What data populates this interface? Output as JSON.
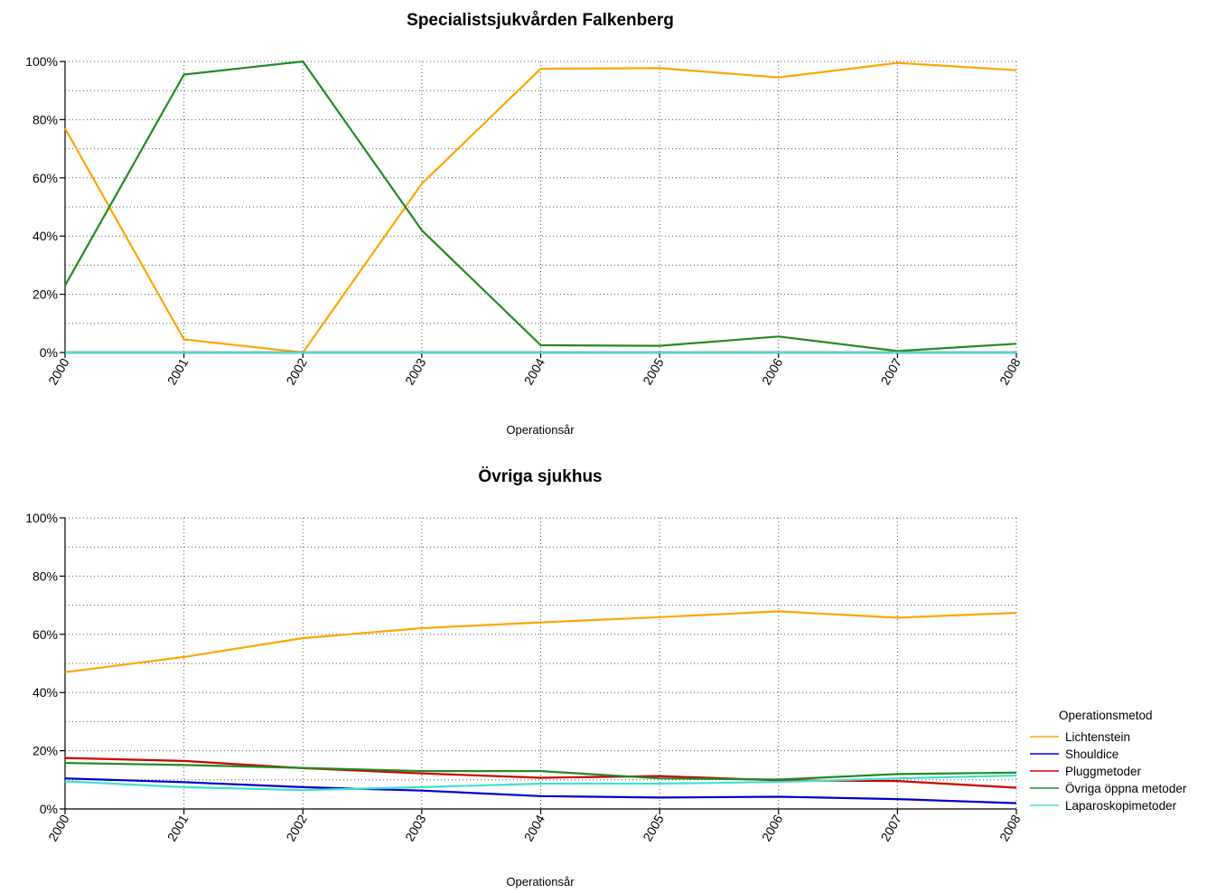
{
  "chart_data": [
    {
      "type": "line",
      "title": "Specialistsjukvården Falkenberg",
      "xlabel": "Operationsår",
      "ylabel": "",
      "ylim": [
        0,
        100
      ],
      "y_ticks": [
        "0%",
        "20%",
        "40%",
        "60%",
        "80%",
        "100%"
      ],
      "grid": true,
      "x": [
        "2000",
        "2001",
        "2002",
        "2003",
        "2004",
        "2005",
        "2006",
        "2007",
        "2008"
      ],
      "series": [
        {
          "name": "Lichtenstein",
          "color": "#FFA500",
          "values": [
            77,
            4.5,
            0,
            58,
            97.5,
            97.7,
            94.5,
            99.5,
            97
          ]
        },
        {
          "name": "Shouldice",
          "color": "#0000CD",
          "values": [
            0,
            0,
            0,
            0,
            0,
            0,
            0,
            0,
            0
          ]
        },
        {
          "name": "Pluggmetoder",
          "color": "#CD0000",
          "values": [
            0,
            0,
            0,
            0,
            0,
            0,
            0,
            0,
            0
          ]
        },
        {
          "name": "Övriga öppna metoder",
          "color": "#228B22",
          "values": [
            23,
            95.5,
            100,
            42,
            2.5,
            2.3,
            5.5,
            0.5,
            3
          ]
        },
        {
          "name": "Laparoskopimetoder",
          "color": "#40E0D0",
          "values": [
            0,
            0,
            0,
            0,
            0,
            0,
            0,
            0,
            0
          ]
        }
      ]
    },
    {
      "type": "line",
      "title": "Övriga sjukhus",
      "xlabel": "Operationsår",
      "ylabel": "",
      "ylim": [
        0,
        100
      ],
      "y_ticks": [
        "0%",
        "20%",
        "40%",
        "60%",
        "80%",
        "100%"
      ],
      "grid": true,
      "x": [
        "2000",
        "2001",
        "2002",
        "2003",
        "2004",
        "2005",
        "2006",
        "2007",
        "2008"
      ],
      "series": [
        {
          "name": "Lichtenstein",
          "color": "#FFA500",
          "values": [
            47,
            52.2,
            58.7,
            62.1,
            64.1,
            65.9,
            67.9,
            65.7,
            67.4
          ]
        },
        {
          "name": "Shouldice",
          "color": "#0000CD",
          "values": [
            10.5,
            9.2,
            7.5,
            6.3,
            4.4,
            3.9,
            4.2,
            3.4,
            2
          ]
        },
        {
          "name": "Pluggmetoder",
          "color": "#CD0000",
          "values": [
            17.5,
            16.5,
            14,
            12.2,
            10.7,
            11.3,
            9.8,
            9.6,
            7.3
          ]
        },
        {
          "name": "Övriga öppna metoder",
          "color": "#228B22",
          "values": [
            15.8,
            15.1,
            14.1,
            13,
            13,
            10.5,
            10.1,
            12,
            12.5
          ]
        },
        {
          "name": "Laparoskopimetoder",
          "color": "#40E0D0",
          "values": [
            9.5,
            7.5,
            6.5,
            7.5,
            8.7,
            8.7,
            9.3,
            10.5,
            11.5
          ]
        }
      ]
    }
  ],
  "legend": {
    "title": "Operationsmetod",
    "items": [
      {
        "label": "Lichtenstein",
        "color": "#FFA500"
      },
      {
        "label": "Shouldice",
        "color": "#0000CD"
      },
      {
        "label": "Pluggmetoder",
        "color": "#CD0000"
      },
      {
        "label": "Övriga öppna metoder",
        "color": "#228B22"
      },
      {
        "label": "Laparoskopimetoder",
        "color": "#40E0D0"
      }
    ]
  }
}
